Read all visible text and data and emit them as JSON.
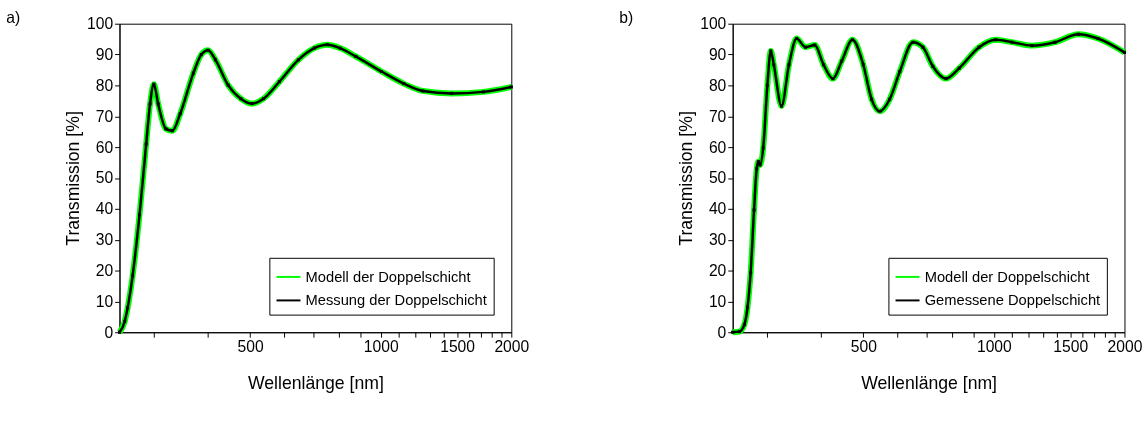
{
  "chart_data": [
    {
      "type": "line",
      "title": "a)",
      "xlabel": "Wellenlänge [nm]",
      "ylabel": "Transmission [%]",
      "log": "x",
      "xlim": [
        250,
        2000
      ],
      "ylim": [
        0,
        100
      ],
      "xticks": [
        {
          "value": 300,
          "label": null
        },
        {
          "value": 400,
          "label": null
        },
        500,
        {
          "value": 600,
          "label": null
        },
        {
          "value": 700,
          "label": null
        },
        {
          "value": 800,
          "label": null
        },
        {
          "value": 900,
          "label": null
        },
        1000,
        {
          "value": 1100,
          "label": null
        },
        {
          "value": 1200,
          "label": null
        },
        {
          "value": 1300,
          "label": null
        },
        {
          "value": 1400,
          "label": null
        },
        1500,
        {
          "value": 1600,
          "label": null
        },
        {
          "value": 1700,
          "label": null
        },
        {
          "value": 1800,
          "label": null
        },
        {
          "value": 1900,
          "label": null
        },
        2000
      ],
      "yticks": [
        0,
        10,
        20,
        30,
        40,
        50,
        60,
        70,
        80,
        90,
        100
      ],
      "grid": false,
      "legend": "bottom right",
      "marker": "square",
      "line_style": "solid",
      "x": [
        250,
        257,
        261,
        268,
        278,
        288,
        294,
        300,
        307,
        320,
        331,
        345,
        370,
        386,
        400,
        416,
        445,
        476,
        505,
        537,
        584,
        646,
        703,
        753,
        806,
        876,
        1004,
        1130,
        1251,
        1457,
        1725,
        2000
      ],
      "series": [
        {
          "name": "Modell der Doppelschicht",
          "color": "#00ff00",
          "values": [
            0,
            3.5,
            7.9,
            18.3,
            38,
            61,
            74,
            80.4,
            74,
            65.9,
            65.3,
            70.8,
            84,
            90,
            91.4,
            88.3,
            80.1,
            75.7,
            74.1,
            75.7,
            81.2,
            88.3,
            92.1,
            93.2,
            92.1,
            89.4,
            84.5,
            80.6,
            78.2,
            77.4,
            77.9,
            79.5
          ]
        },
        {
          "name": "Messung der Doppelschicht",
          "color": "#000000",
          "values": [
            0,
            3.5,
            7.9,
            18.3,
            38,
            61,
            74,
            80.4,
            74,
            65.9,
            65.3,
            70.8,
            84,
            90,
            91.4,
            88.3,
            80.1,
            75.7,
            74.1,
            75.7,
            81.2,
            88.3,
            92.1,
            93.2,
            92.1,
            89.4,
            84.5,
            80.6,
            78.2,
            77.4,
            77.9,
            79.5
          ]
        }
      ]
    },
    {
      "type": "line",
      "title": "b)",
      "xlabel": "Wellenlänge [nm]",
      "ylabel": "Transmission [%]",
      "log": "x",
      "xlim": [
        250,
        2000
      ],
      "ylim": [
        0,
        100
      ],
      "xticks": [
        {
          "value": 300,
          "label": null
        },
        {
          "value": 400,
          "label": null
        },
        500,
        {
          "value": 600,
          "label": null
        },
        {
          "value": 700,
          "label": null
        },
        {
          "value": 800,
          "label": null
        },
        {
          "value": 900,
          "label": null
        },
        1000,
        {
          "value": 1100,
          "label": null
        },
        {
          "value": 1200,
          "label": null
        },
        {
          "value": 1300,
          "label": null
        },
        {
          "value": 1400,
          "label": null
        },
        1500,
        {
          "value": 1600,
          "label": null
        },
        {
          "value": 1700,
          "label": null
        },
        {
          "value": 1800,
          "label": null
        },
        {
          "value": 1900,
          "label": null
        },
        2000
      ],
      "yticks": [
        0,
        10,
        20,
        30,
        40,
        50,
        60,
        70,
        80,
        90,
        100
      ],
      "grid": false,
      "legend": "bottom right",
      "marker": "square",
      "line_style": "solid",
      "x": [
        250,
        259,
        266,
        270.5,
        275,
        280,
        284,
        286.5,
        289,
        294,
        300.5,
        306,
        311,
        324,
        337,
        351,
        368,
        386.5,
        405,
        425.5,
        446,
        472,
        500,
        522.6,
        546,
        575,
        607,
        651,
        686,
        723,
        775,
        832,
        924.5,
        1009,
        1101.5,
        1224,
        1384,
        1565,
        1738,
        2000
      ],
      "series": [
        {
          "name": "Modell der Doppelschicht",
          "color": "#00ff00",
          "values": [
            0,
            0.2,
            2.5,
            8.1,
            19.3,
            39.6,
            53,
            55.3,
            54.2,
            59.8,
            80,
            91.2,
            86.7,
            73.3,
            86.7,
            95.2,
            92.4,
            93.1,
            86.7,
            82.2,
            87.9,
            94.8,
            86.7,
            75.5,
            71.6,
            75.5,
            84.5,
            94,
            92.4,
            86.2,
            82.2,
            85.6,
            92.4,
            94.8,
            94,
            92.9,
            94,
            96.6,
            95.2,
            90.7
          ]
        },
        {
          "name": "Gemessene Doppelschicht",
          "color": "#000000",
          "values": [
            0,
            0.2,
            2.5,
            8.1,
            19.3,
            39.6,
            53,
            55.3,
            54.2,
            59.8,
            80,
            91.2,
            86.7,
            73.3,
            86.7,
            95.2,
            92.4,
            93.1,
            86.7,
            82.2,
            87.9,
            94.8,
            86.7,
            75.5,
            71.6,
            75.5,
            84.5,
            94,
            92.4,
            86.2,
            82.2,
            85.6,
            92.4,
            94.8,
            94,
            92.9,
            94,
            96.6,
            95.2,
            90.7
          ]
        }
      ]
    }
  ]
}
